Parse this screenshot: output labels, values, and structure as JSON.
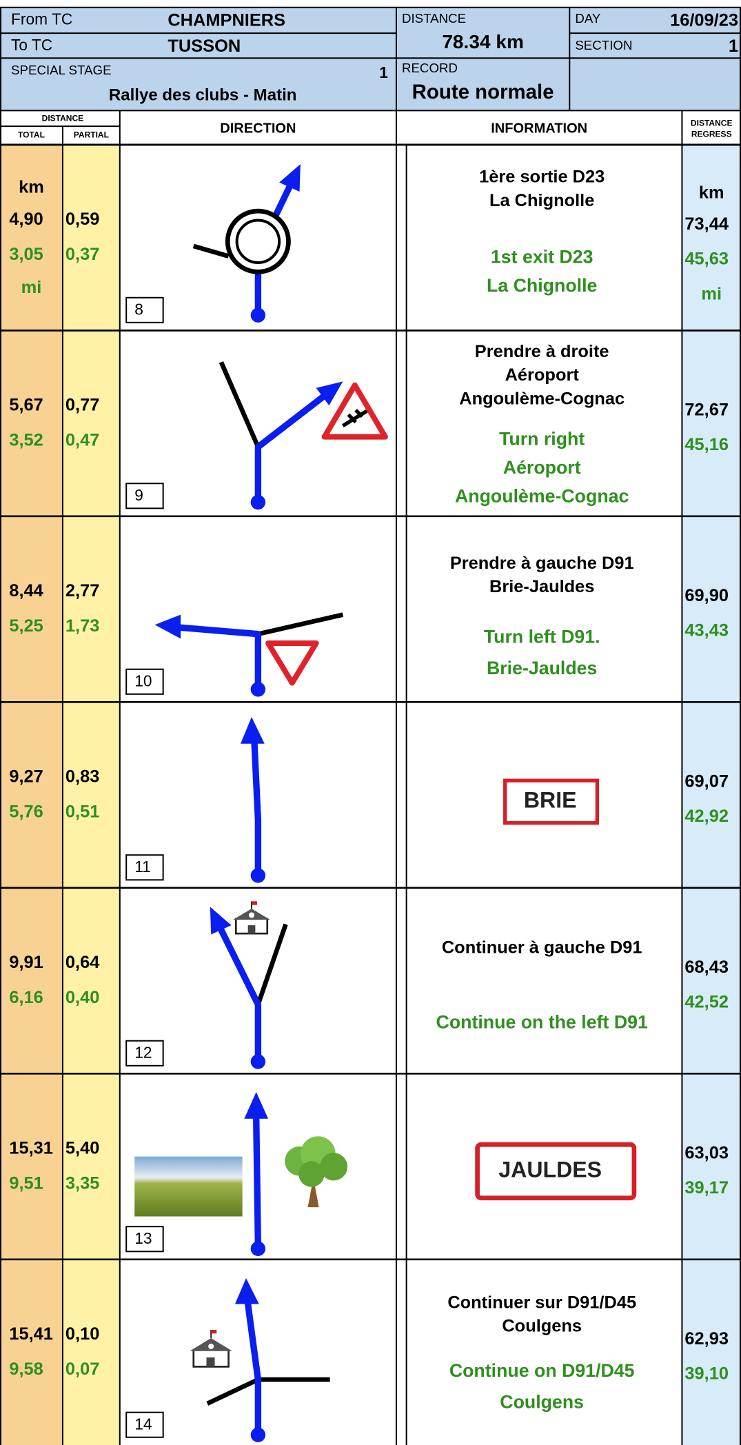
{
  "header": {
    "from_label": "From TC",
    "from": "CHAMPNIERS",
    "to_label": "To TC",
    "to": "TUSSON",
    "stage_label": "SPECIAL STAGE",
    "stage": "1",
    "rally": "Rallye des clubs - Matin",
    "distance_label": "DISTANCE",
    "distance": "78.34 km",
    "record_label": "RECORD",
    "record": "Route normale",
    "day_label": "DAY",
    "day": "16/09/23",
    "section_label": "SECTION",
    "section": "1"
  },
  "columns": {
    "distance": "DISTANCE",
    "total": "TOTAL",
    "partial": "PARTIAL",
    "direction": "DIRECTION",
    "information": "INFORMATION",
    "regress": [
      "DISTANCE",
      "REGRESS"
    ]
  },
  "units": {
    "km": "km",
    "mi": "mi"
  },
  "rows": [
    {
      "number": "8",
      "total": {
        "km": "4,90",
        "mi": "3,05"
      },
      "partial": {
        "km": "0,59",
        "mi": "0,37"
      },
      "regress": {
        "km": "73,44",
        "mi": "45,63"
      },
      "info_fr": [
        "1ère sortie D23",
        "La Chignolle"
      ],
      "info_en": [
        "1st exit D23",
        "La Chignolle"
      ]
    },
    {
      "number": "9",
      "total": {
        "km": "5,67",
        "mi": "3,52"
      },
      "partial": {
        "km": "0,77",
        "mi": "0,47"
      },
      "regress": {
        "km": "72,67",
        "mi": "45,16"
      },
      "info_fr": [
        "Prendre à droite",
        "Aéroport",
        "Angoulème-Cognac"
      ],
      "info_en": [
        "Turn right",
        "Aéroport",
        "Angoulème-Cognac"
      ]
    },
    {
      "number": "10",
      "total": {
        "km": "8,44",
        "mi": "5,25"
      },
      "partial": {
        "km": "2,77",
        "mi": "1,73"
      },
      "regress": {
        "km": "69,90",
        "mi": "43,43"
      },
      "info_fr": [
        "Prendre à gauche D91",
        "Brie-Jauldes"
      ],
      "info_en": [
        "Turn left D91.",
        "Brie-Jauldes"
      ]
    },
    {
      "number": "11",
      "total": {
        "km": "9,27",
        "mi": "5,76"
      },
      "partial": {
        "km": "0,83",
        "mi": "0,51"
      },
      "regress": {
        "km": "69,07",
        "mi": "42,92"
      },
      "sign": "BRIE"
    },
    {
      "number": "12",
      "total": {
        "km": "9,91",
        "mi": "6,16"
      },
      "partial": {
        "km": "0,64",
        "mi": "0,40"
      },
      "regress": {
        "km": "68,43",
        "mi": "42,52"
      },
      "info_fr": [
        "Continuer à gauche D91"
      ],
      "info_en": [
        "Continue on the left D91"
      ]
    },
    {
      "number": "13",
      "total": {
        "km": "15,31",
        "mi": "9,51"
      },
      "partial": {
        "km": "5,40",
        "mi": "3,35"
      },
      "regress": {
        "km": "63,03",
        "mi": "39,17"
      },
      "sign": "JAULDES"
    },
    {
      "number": "14",
      "total": {
        "km": "15,41",
        "mi": "9,58"
      },
      "partial": {
        "km": "0,10",
        "mi": "0,07"
      },
      "regress": {
        "km": "62,93",
        "mi": "39,10"
      },
      "info_fr": [
        "Continuer sur D91/D45",
        "Coulgens"
      ],
      "info_en": [
        "Continue on D91/D45",
        "Coulgens"
      ]
    }
  ]
}
